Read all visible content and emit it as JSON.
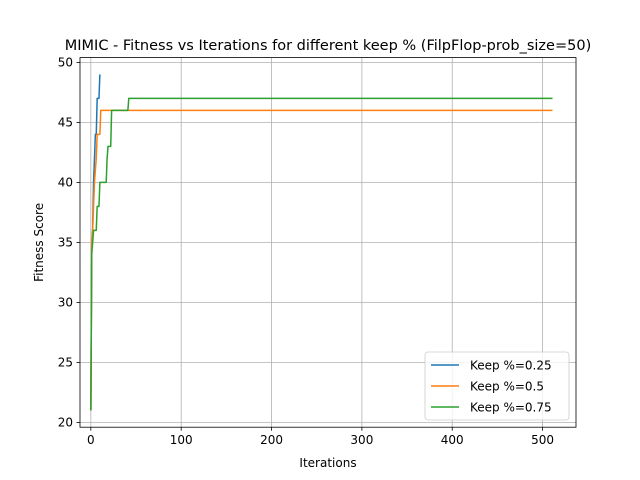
{
  "chart_data": {
    "type": "line",
    "title": "MIMIC - Fitness vs Iterations for different keep % (FilpFlop-prob_size=50)",
    "xlabel": "Iterations",
    "ylabel": "Fitness Score",
    "xlim": [
      -12,
      537
    ],
    "ylim": [
      19.6,
      50.4
    ],
    "xticks": [
      0,
      100,
      200,
      300,
      400,
      500
    ],
    "yticks": [
      20,
      25,
      30,
      35,
      40,
      45,
      50
    ],
    "grid": true,
    "legend_position": "lower-right",
    "series": [
      {
        "name": "Keep %=0.25",
        "color": "#1f77b4",
        "x": [
          0,
          1,
          2,
          3,
          4,
          5,
          6,
          7,
          8,
          9,
          10
        ],
        "y": [
          21,
          35,
          36,
          40,
          42,
          44,
          44,
          47,
          47,
          47,
          49
        ]
      },
      {
        "name": "Keep %=0.5",
        "color": "#ff7f0e",
        "x": [
          0,
          1,
          2,
          3,
          4,
          5,
          6,
          7,
          8,
          9,
          10,
          11,
          12,
          511
        ],
        "y": [
          21,
          35,
          36,
          38,
          40,
          41,
          42,
          44,
          44,
          44,
          44,
          46,
          46,
          46
        ]
      },
      {
        "name": "Keep %=0.75",
        "color": "#2ca02c",
        "x": [
          0,
          1,
          2,
          3,
          4,
          5,
          6,
          7,
          8,
          9,
          10,
          11,
          12,
          13,
          14,
          15,
          16,
          17,
          18,
          19,
          20,
          21,
          22,
          23,
          24,
          41,
          42,
          43,
          511
        ],
        "y": [
          21,
          34,
          35,
          36,
          36,
          36,
          36,
          38,
          38,
          38,
          40,
          40,
          40,
          40,
          40,
          40,
          40,
          40,
          42,
          43,
          43,
          43,
          43,
          46,
          46,
          46,
          47,
          47,
          47
        ]
      }
    ]
  }
}
